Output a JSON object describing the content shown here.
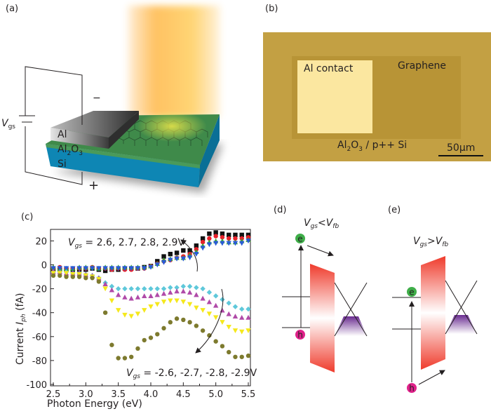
{
  "panel_a": {
    "label": "(a)",
    "vgs_main": "V",
    "vgs_sub": "gs",
    "minus": "−",
    "plus": "+",
    "layer_al": "Al",
    "layer_al2o3": {
      "a": "Al",
      "b": "2",
      "c": "O",
      "d": "3"
    },
    "layer_si": "Si",
    "colors": {
      "si": "#0e86b4",
      "graphene": "#3f8a4a",
      "al": "#9a9a9a",
      "light": "#ffc86a"
    }
  },
  "panel_b": {
    "label": "(b)",
    "al_contact": "Al contact",
    "graphene": "Graphene",
    "substrate": {
      "a": "Al",
      "b": "2",
      "c": "O",
      "d": "3",
      "e": " / p++ Si"
    },
    "scale_bar": "50μm"
  },
  "panel_c": {
    "label": "(c)",
    "chart_data": {
      "type": "scatter",
      "xlabel": "Photon Energy (eV)",
      "ylabel": {
        "main": "Current ",
        "i": "I",
        "sub": "ph",
        "unit": " (fA)"
      },
      "xlim": [
        2.5,
        5.5
      ],
      "ylim": [
        -100,
        29
      ],
      "xticks": [
        "2.5",
        "3.0",
        "3.5",
        "4.0",
        "4.5",
        "5.0",
        "5.5"
      ],
      "yticks": [
        "20",
        "0",
        "-20",
        "-40",
        "-60",
        "-80",
        "-100"
      ],
      "grid": false,
      "annotations": {
        "positive": {
          "v": "V",
          "sub": "gs",
          "rest": " = 2.6, 2.7, 2.8, 2.9V"
        },
        "negative": {
          "v": "V",
          "sub": "gs",
          "rest": " = -2.6, -2.7, -2.8, -2.9V"
        }
      },
      "x": [
        2.5,
        2.6,
        2.7,
        2.8,
        2.9,
        3.0,
        3.1,
        3.2,
        3.3,
        3.4,
        3.5,
        3.6,
        3.7,
        3.8,
        3.9,
        4.0,
        4.1,
        4.2,
        4.3,
        4.4,
        4.5,
        4.6,
        4.7,
        4.8,
        4.9,
        5.0,
        5.1,
        5.2,
        5.3,
        5.4,
        5.5
      ],
      "series": [
        {
          "color": "#111111",
          "marker": "square",
          "values": [
            -4,
            -4,
            -4,
            -4,
            -4,
            -4,
            -3,
            -4,
            -5,
            -4,
            -4,
            -3,
            -3,
            -3,
            -2,
            -1,
            3,
            7,
            9,
            10,
            12,
            12,
            16,
            22,
            26,
            27,
            26,
            25,
            25,
            25,
            25
          ]
        },
        {
          "color": "#e8202a",
          "marker": "circle",
          "values": [
            -3,
            -2,
            -3,
            -3,
            -3,
            -3,
            -2,
            -3,
            -3,
            -4,
            -3,
            -4,
            -4,
            -3,
            -3,
            -1,
            1,
            3,
            4,
            6,
            7,
            9,
            13,
            19,
            22,
            24,
            23,
            22,
            22,
            22,
            23
          ]
        },
        {
          "color": "#3aa835",
          "marker": "triangle-up",
          "values": [
            -2,
            -3,
            -3,
            -3,
            -2,
            -2,
            -2,
            -3,
            -2,
            -2,
            -2,
            -2,
            -2,
            -2,
            -2,
            -1,
            1,
            4,
            5,
            6,
            6,
            8,
            11,
            16,
            19,
            20,
            20,
            19,
            19,
            20,
            21
          ]
        },
        {
          "color": "#2a5bd7",
          "marker": "triangle-down",
          "values": [
            -3,
            -3,
            -3,
            -3,
            -3,
            -3,
            -3,
            -3,
            -3,
            -3,
            -3,
            -3,
            -3,
            -3,
            -3,
            -2,
            0,
            2,
            4,
            5,
            5,
            6,
            9,
            14,
            17,
            18,
            18,
            18,
            18,
            18,
            20
          ]
        },
        {
          "color": "#5ec8da",
          "marker": "diamond",
          "values": [
            -6,
            -6,
            -6,
            -7,
            -7,
            -8,
            -9,
            -11,
            -15,
            -18,
            -20,
            -20,
            -20,
            -20,
            -20,
            -20,
            -20,
            -20,
            -19,
            -19,
            -18,
            -18,
            -19,
            -20,
            -23,
            -26,
            -29,
            -32,
            -35,
            -37,
            -37
          ]
        },
        {
          "color": "#b04aa8",
          "marker": "triangle-up",
          "values": [
            -6,
            -6,
            -7,
            -7,
            -7,
            -8,
            -9,
            -11,
            -16,
            -21,
            -25,
            -27,
            -28,
            -27,
            -26,
            -26,
            -25,
            -24,
            -23,
            -22,
            -22,
            -23,
            -25,
            -28,
            -31,
            -34,
            -38,
            -41,
            -43,
            -44,
            -44
          ]
        },
        {
          "color": "#f5e81c",
          "marker": "triangle-down",
          "values": [
            -7,
            -7,
            -7,
            -8,
            -8,
            -9,
            -10,
            -12,
            -20,
            -30,
            -38,
            -42,
            -43,
            -41,
            -38,
            -35,
            -33,
            -31,
            -30,
            -30,
            -31,
            -33,
            -36,
            -38,
            -41,
            -44,
            -48,
            -52,
            -55,
            -56,
            -55
          ]
        },
        {
          "color": "#7d7a2e",
          "marker": "circle",
          "values": [
            -9,
            -9,
            -10,
            -10,
            -10,
            -11,
            -11,
            -14,
            -40,
            -67,
            -78,
            -78,
            -77,
            -70,
            -63,
            -61,
            -58,
            -53,
            -48,
            -45,
            -46,
            -48,
            -51,
            -55,
            -59,
            -64,
            -68,
            -73,
            -77,
            -77,
            -76
          ]
        }
      ]
    }
  },
  "panel_d": {
    "label": "(d)",
    "condition": {
      "v1": "V",
      "s1": "gs",
      "op": "<",
      "v2": "V",
      "s2": "fb"
    },
    "electron": "e",
    "hole": "h"
  },
  "panel_e": {
    "label": "(e)",
    "condition": {
      "v1": "V",
      "s1": "gs",
      "op": ">",
      "v2": "V",
      "s2": "fb"
    },
    "electron": "e",
    "hole": "h"
  },
  "colors": {
    "electron": "#3fae49",
    "hole": "#e0218a",
    "barrier": "#ef3b2c",
    "holes_fill": "#6a2c91"
  }
}
